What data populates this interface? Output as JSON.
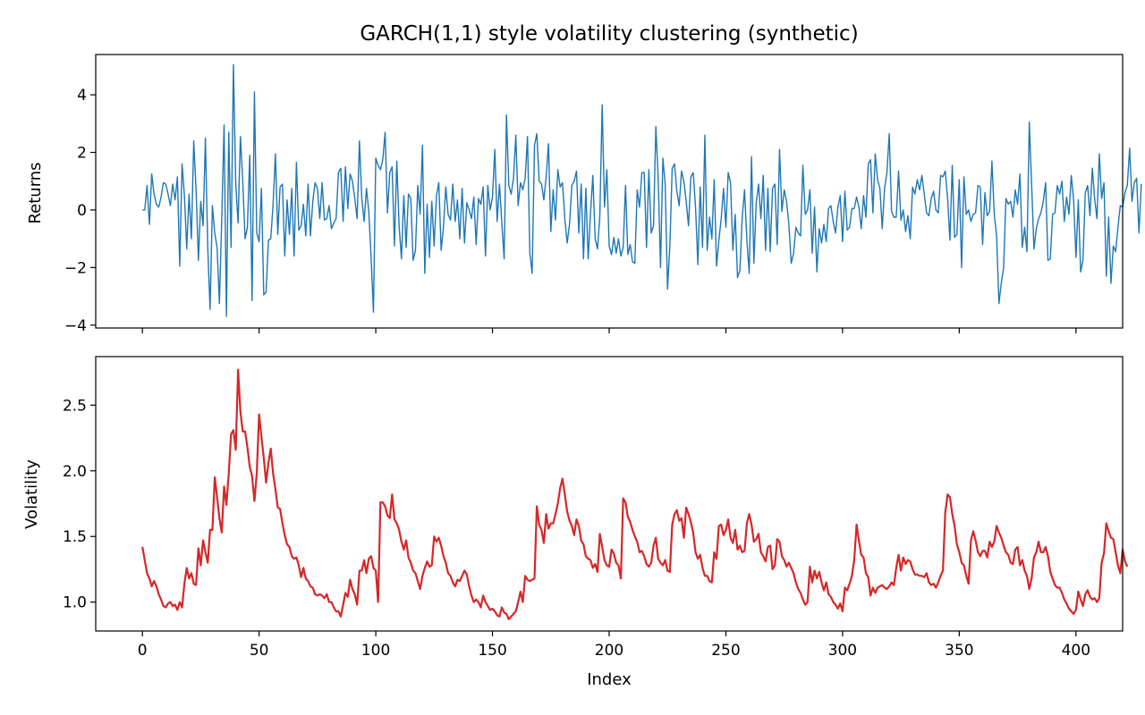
{
  "figure": {
    "title": "GARCH(1,1) style volatility clustering (synthetic)"
  },
  "chart_data": [
    {
      "type": "line",
      "title": "GARCH(1,1) style volatility clustering (synthetic)",
      "xlabel": "",
      "ylabel": "Returns",
      "xlim": [
        -20,
        420
      ],
      "ylim": [
        -4.1,
        5.4
      ],
      "xticks": [
        0,
        50,
        100,
        150,
        200,
        250,
        300,
        350,
        400
      ],
      "xtick_labels_shown": false,
      "yticks": [
        -4,
        -2,
        0,
        2,
        4
      ],
      "ytick_labels": [
        "−4",
        "−2",
        "0",
        "2",
        "4"
      ],
      "grid": false,
      "series": [
        {
          "color": "#1f77b4",
          "x_start": 0,
          "x_step": 1,
          "values": [
            0.0,
            0.0,
            0.85,
            -0.5,
            1.25,
            0.55,
            0.2,
            0.1,
            0.45,
            0.95,
            0.9,
            0.55,
            0.15,
            0.9,
            0.35,
            1.15,
            -1.95,
            1.6,
            0.5,
            -1.35,
            0.55,
            -1.0,
            2.4,
            0.7,
            -1.75,
            0.3,
            -0.55,
            2.5,
            -1.3,
            -3.45,
            0.15,
            -0.8,
            -1.3,
            -3.25,
            -0.3,
            2.95,
            -3.7,
            2.7,
            -1.3,
            5.05,
            0.9,
            -0.45,
            2.55,
            1.0,
            -1.0,
            -0.6,
            1.9,
            -3.15,
            4.1,
            -0.8,
            -1.1,
            0.75,
            -2.95,
            -2.85,
            -1.05,
            -1.0,
            0.2,
            1.95,
            -0.85,
            0.8,
            0.9,
            -1.6,
            0.35,
            -0.85,
            0.75,
            -1.6,
            1.65,
            -0.7,
            -0.55,
            0.2,
            -0.9,
            0.9,
            -0.9,
            0.3,
            0.95,
            0.75,
            -0.3,
            0.95,
            -0.35,
            -0.3,
            0.15,
            -0.65,
            -0.45,
            -0.3,
            1.3,
            1.45,
            -0.4,
            1.5,
            0.05,
            1.25,
            1.0,
            0.4,
            -0.3,
            2.4,
            0.4,
            -0.4,
            0.75,
            -0.05,
            -1.65,
            -3.55,
            1.8,
            1.55,
            1.4,
            1.75,
            2.7,
            -0.1,
            1.3,
            1.5,
            -1.25,
            1.7,
            -0.55,
            -1.7,
            0.5,
            -1.3,
            0.55,
            0.4,
            -1.75,
            -1.4,
            0.85,
            -0.15,
            2.25,
            -2.2,
            0.2,
            -1.65,
            0.3,
            -1.25,
            0.5,
            0.95,
            -1.4,
            -0.6,
            0.8,
            -0.15,
            -0.35,
            0.9,
            -0.4,
            0.35,
            -1.0,
            0.75,
            -1.15,
            0.25,
            0.0,
            -0.3,
            0.45,
            -1.2,
            0.4,
            0.2,
            0.8,
            -1.6,
            0.85,
            0.0,
            0.45,
            2.1,
            -0.4,
            0.9,
            -0.45,
            -1.7,
            3.3,
            0.85,
            0.55,
            1.1,
            2.6,
            0.15,
            0.95,
            0.7,
            1.1,
            2.55,
            -1.5,
            -2.2,
            2.25,
            2.65,
            1.0,
            0.9,
            0.35,
            1.15,
            2.3,
            -0.75,
            0.7,
            -0.35,
            1.4,
            0.8,
            0.95,
            -0.3,
            -1.15,
            -0.5,
            0.85,
            1.0,
            1.35,
            -0.8,
            0.9,
            -1.7,
            0.75,
            -1.7,
            -0.1,
            1.2,
            -1.0,
            -1.35,
            -0.2,
            3.65,
            0.1,
            1.4,
            -1.25,
            -1.55,
            -0.95,
            -1.5,
            -1.0,
            -1.6,
            -1.3,
            0.85,
            -1.55,
            -1.2,
            -1.8,
            -1.85,
            0.7,
            0.1,
            1.3,
            1.3,
            -1.3,
            1.4,
            -0.8,
            -0.55,
            2.9,
            1.1,
            -2.0,
            1.8,
            0.9,
            -2.75,
            -1.25,
            1.45,
            1.6,
            0.65,
            0.15,
            1.35,
            1.0,
            0.3,
            -0.55,
            1.15,
            1.3,
            0.1,
            -1.9,
            0.8,
            -1.3,
            2.6,
            -1.4,
            -0.25,
            -1.0,
            1.05,
            -1.95,
            -1.05,
            -0.3,
            0.75,
            -0.6,
            1.3,
            0.95,
            -1.4,
            -0.15,
            -2.35,
            -2.1,
            -0.25,
            0.7,
            -1.05,
            -2.2,
            1.85,
            -1.85,
            0.25,
            0.9,
            -0.3,
            1.2,
            -1.4,
            0.75,
            -1.45,
            0.75,
            0.9,
            -1.2,
            2.1,
            -0.05,
            0.7,
            0.3,
            -0.5,
            -1.85,
            -1.5,
            -0.6,
            -0.8,
            -0.9,
            1.55,
            -0.15,
            0.0,
            0.7,
            -1.5,
            0.1,
            -2.15,
            -0.65,
            -1.15,
            -0.5,
            -1.1,
            0.05,
            0.15,
            -0.4,
            -0.8,
            0.1,
            0.5,
            -1.1,
            0.65,
            -0.7,
            -0.6,
            0.05,
            0.05,
            0.45,
            0.1,
            -0.65,
            0.5,
            -0.25,
            1.6,
            1.75,
            -0.1,
            1.95,
            1.05,
            0.75,
            -0.65,
            0.75,
            1.3,
            2.65,
            -0.05,
            -0.25,
            -0.25,
            1.35,
            -0.35,
            0.0,
            -0.75,
            -0.2,
            -1.0,
            0.8,
            0.55,
            1.05,
            0.7,
            1.2,
            0.55,
            -0.1,
            -0.2,
            0.4,
            0.65,
            0.0,
            -0.1,
            1.2,
            1.15,
            1.35,
            0.4,
            -1.05,
            1.55,
            -0.95,
            -0.85,
            1.05,
            -2.0,
            1.15,
            -0.15,
            0.0,
            -0.4,
            -0.15,
            -0.1,
            0.85,
            0.8,
            -1.2,
            0.6,
            -0.2,
            -0.05,
            1.7,
            -0.15,
            -0.9,
            -3.25,
            -2.55,
            -2.0,
            0.4,
            0.2,
            0.3,
            -0.25,
            0.7,
            0.2,
            1.25,
            -1.3,
            -0.6,
            -1.45,
            3.05,
            0.9,
            -1.35,
            -0.65,
            -0.3,
            -0.1,
            0.3,
            0.95,
            -1.75,
            -1.7,
            -0.15,
            -0.1,
            0.85,
            0.55,
            1.0,
            -0.4,
            0.45,
            -0.15,
            1.2,
            0.35,
            -1.65,
            0.35,
            -2.15,
            -1.75,
            0.6,
            0.85,
            -0.2,
            1.45,
            0.4,
            -0.3,
            1.95,
            0.4,
            0.95,
            -2.3,
            -0.25,
            -2.55,
            -1.25,
            -1.45,
            -0.6,
            0.15,
            0.1,
            0.6,
            0.85,
            2.15,
            0.3,
            0.95,
            1.1,
            -0.8,
            0.9
          ]
        }
      ]
    },
    {
      "type": "line",
      "title": "",
      "xlabel": "Index",
      "ylabel": "Volatility",
      "xlim": [
        -20,
        420
      ],
      "ylim": [
        0.78,
        2.87
      ],
      "xticks": [
        0,
        50,
        100,
        150,
        200,
        250,
        300,
        350,
        400
      ],
      "xtick_labels": [
        "0",
        "50",
        "100",
        "150",
        "200",
        "250",
        "300",
        "350",
        "400"
      ],
      "yticks": [
        1.0,
        1.5,
        2.0,
        2.5
      ],
      "ytick_labels": [
        "1.0",
        "1.5",
        "2.0",
        "2.5"
      ],
      "grid": false,
      "series": [
        {
          "color": "#d62728",
          "x_start": 0,
          "x_step": 1,
          "values": [
            1.42,
            1.32,
            1.22,
            1.18,
            1.12,
            1.16,
            1.12,
            1.06,
            1.02,
            0.97,
            0.96,
            0.99,
            1.0,
            0.97,
            0.98,
            0.94,
            1.0,
            0.96,
            1.14,
            1.26,
            1.18,
            1.22,
            1.14,
            1.13,
            1.41,
            1.28,
            1.47,
            1.38,
            1.3,
            1.55,
            1.55,
            1.95,
            1.8,
            1.64,
            1.53,
            1.88,
            1.74,
            1.98,
            2.28,
            2.31,
            2.16,
            2.77,
            2.45,
            2.3,
            2.3,
            2.18,
            2.03,
            1.96,
            1.77,
            1.98,
            2.43,
            2.26,
            2.1,
            1.91,
            2.06,
            2.17,
            1.98,
            1.86,
            1.72,
            1.71,
            1.6,
            1.51,
            1.44,
            1.42,
            1.35,
            1.33,
            1.34,
            1.28,
            1.19,
            1.26,
            1.18,
            1.16,
            1.12,
            1.11,
            1.06,
            1.05,
            1.06,
            1.05,
            1.03,
            1.06,
            1.0,
            1.0,
            0.96,
            0.93,
            0.93,
            0.89,
            0.98,
            1.07,
            1.04,
            1.17,
            1.1,
            1.06,
            0.98,
            1.24,
            1.24,
            1.32,
            1.22,
            1.33,
            1.35,
            1.26,
            1.24,
            1.0,
            1.76,
            1.76,
            1.73,
            1.66,
            1.64,
            1.82,
            1.63,
            1.6,
            1.55,
            1.46,
            1.4,
            1.47,
            1.34,
            1.3,
            1.24,
            1.22,
            1.16,
            1.1,
            1.2,
            1.26,
            1.31,
            1.27,
            1.28,
            1.5,
            1.46,
            1.49,
            1.43,
            1.35,
            1.3,
            1.22,
            1.2,
            1.15,
            1.12,
            1.17,
            1.16,
            1.2,
            1.24,
            1.21,
            1.12,
            1.05,
            1.0,
            1.02,
            1.0,
            0.96,
            1.05,
            1.0,
            0.97,
            0.94,
            0.95,
            0.93,
            0.9,
            0.89,
            0.96,
            0.92,
            0.91,
            0.87,
            0.89,
            0.91,
            0.93,
            1.0,
            1.08,
            1.0,
            1.2,
            1.17,
            1.16,
            1.17,
            1.18,
            1.73,
            1.59,
            1.55,
            1.45,
            1.67,
            1.56,
            1.6,
            1.6,
            1.67,
            1.75,
            1.87,
            1.94,
            1.82,
            1.69,
            1.62,
            1.58,
            1.51,
            1.63,
            1.58,
            1.47,
            1.44,
            1.35,
            1.33,
            1.32,
            1.26,
            1.29,
            1.23,
            1.52,
            1.42,
            1.32,
            1.28,
            1.27,
            1.4,
            1.37,
            1.3,
            1.28,
            1.18,
            1.79,
            1.76,
            1.65,
            1.61,
            1.55,
            1.5,
            1.46,
            1.38,
            1.39,
            1.35,
            1.29,
            1.27,
            1.3,
            1.43,
            1.49,
            1.33,
            1.3,
            1.28,
            1.32,
            1.24,
            1.23,
            1.59,
            1.67,
            1.7,
            1.62,
            1.64,
            1.49,
            1.72,
            1.67,
            1.61,
            1.53,
            1.38,
            1.33,
            1.36,
            1.26,
            1.2,
            1.2,
            1.16,
            1.15,
            1.38,
            1.33,
            1.58,
            1.59,
            1.51,
            1.55,
            1.63,
            1.49,
            1.45,
            1.55,
            1.4,
            1.43,
            1.38,
            1.39,
            1.6,
            1.67,
            1.59,
            1.46,
            1.48,
            1.52,
            1.38,
            1.35,
            1.31,
            1.42,
            1.43,
            1.25,
            1.28,
            1.48,
            1.46,
            1.35,
            1.32,
            1.27,
            1.3,
            1.26,
            1.22,
            1.15,
            1.1,
            1.07,
            1.02,
            0.98,
            1.0,
            1.27,
            1.15,
            1.24,
            1.18,
            1.23,
            1.15,
            1.09,
            1.15,
            1.06,
            1.04,
            1.0,
            0.98,
            0.95,
            0.99,
            0.93,
            1.11,
            1.09,
            1.14,
            1.2,
            1.32,
            1.59,
            1.47,
            1.36,
            1.34,
            1.22,
            1.19,
            1.05,
            1.11,
            1.07,
            1.11,
            1.12,
            1.13,
            1.11,
            1.1,
            1.12,
            1.15,
            1.13,
            1.26,
            1.36,
            1.24,
            1.34,
            1.29,
            1.32,
            1.31,
            1.25,
            1.21,
            1.21,
            1.2,
            1.2,
            1.19,
            1.22,
            1.15,
            1.13,
            1.14,
            1.11,
            1.15,
            1.2,
            1.24,
            1.68,
            1.82,
            1.8,
            1.67,
            1.58,
            1.44,
            1.38,
            1.3,
            1.28,
            1.2,
            1.14,
            1.47,
            1.54,
            1.47,
            1.38,
            1.35,
            1.39,
            1.39,
            1.34,
            1.46,
            1.42,
            1.46,
            1.58,
            1.53,
            1.49,
            1.43,
            1.38,
            1.36,
            1.3,
            1.29,
            1.4,
            1.42,
            1.28,
            1.32,
            1.24,
            1.2,
            1.1,
            1.18,
            1.34,
            1.38,
            1.46,
            1.38,
            1.38,
            1.42,
            1.35,
            1.23,
            1.18,
            1.13,
            1.11,
            1.11,
            1.07,
            1.02,
            0.99,
            0.95,
            0.93,
            0.91,
            0.94,
            1.08,
            1.02,
            0.97,
            1.06,
            1.09,
            1.04,
            1.02,
            1.03,
            1.0,
            1.03,
            1.3,
            1.37,
            1.6,
            1.54,
            1.49,
            1.48,
            1.38,
            1.28,
            1.22,
            1.4,
            1.31,
            1.27
          ]
        }
      ]
    }
  ]
}
